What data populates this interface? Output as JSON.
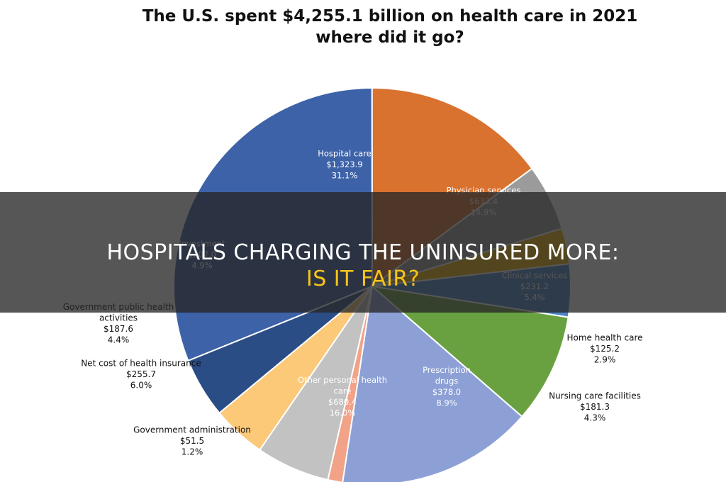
{
  "chart_data": {
    "type": "pie",
    "title_lines": [
      "The U.S. spent $4,255.1 billion on health care in 2021",
      "where did it go?"
    ],
    "slices": [
      {
        "name": "Hospital care",
        "amount": "$1,323.9",
        "percent": "31.1%",
        "value": 31.1,
        "color": "#3d62a8"
      },
      {
        "name": "Physician services",
        "amount": "$633.4",
        "percent": "14.9%",
        "value": 14.9,
        "color": "#d9712f"
      },
      {
        "name": "Clinical services",
        "amount": "$231.2",
        "percent": "5.4%",
        "value": 5.4,
        "color": "#9b9b9b"
      },
      {
        "name": "Home health care",
        "amount": "$125.2",
        "percent": "2.9%",
        "value": 2.9,
        "color": "#f2b705"
      },
      {
        "name": "Nursing care facilities",
        "amount": "$181.3",
        "percent": "4.3%",
        "value": 4.3,
        "color": "#4b86c6"
      },
      {
        "name": "Prescription drugs",
        "amount": "$378.0",
        "percent": "8.9%",
        "value": 8.9,
        "color": "#69a141"
      },
      {
        "name": "Other personal health care",
        "amount": "$680.4",
        "percent": "16.0%",
        "value": 16.0,
        "color": "#8da0d6"
      },
      {
        "name": "Government administration",
        "amount": "$51.5",
        "percent": "1.2%",
        "value": 1.2,
        "color": "#f1a287"
      },
      {
        "name": "Net cost of health insurance",
        "amount": "$255.7",
        "percent": "6.0%",
        "value": 6.0,
        "color": "#c2c2c2"
      },
      {
        "name": "Government public health activities",
        "amount": "$187.6",
        "percent": "4.4%",
        "value": 4.4,
        "color": "#fbc978"
      },
      {
        "name": "Investment",
        "amount": "$207.0",
        "percent": "4.9%",
        "value": 4.9,
        "color": "#2b4d86"
      }
    ]
  },
  "banner": {
    "line1": "HOSPITALS CHARGING THE UNINSURED MORE:",
    "line2": "IS IT FAIR?"
  }
}
